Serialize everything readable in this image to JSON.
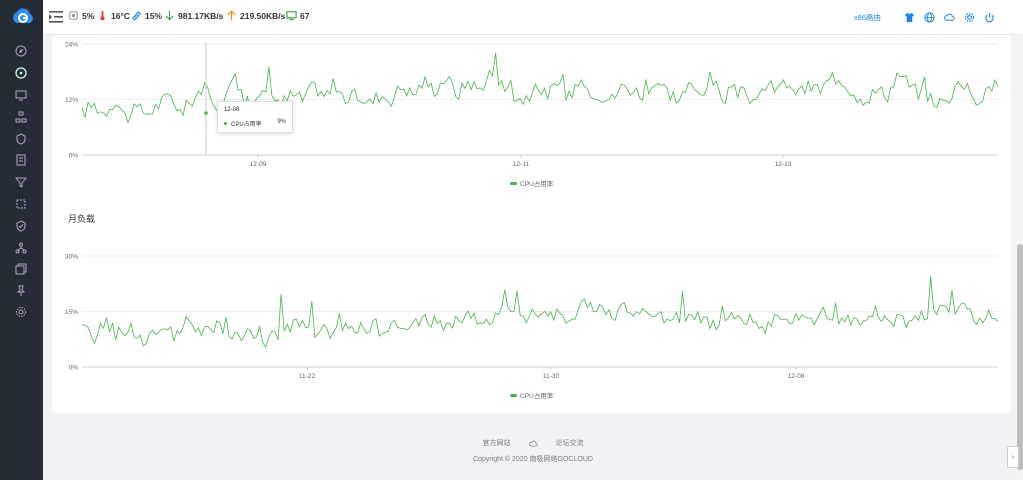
{
  "topbar": {
    "cpu_label": "5%",
    "temp_label": "16°C",
    "mem_label": "15%",
    "down_label": "981.17KB/s",
    "up_label": "219.50KB/s",
    "devices_label": "67",
    "router_link": "x86路由"
  },
  "sidebar": {
    "icons": [
      "dashboard-icon",
      "speedometer-icon",
      "monitor-icon",
      "network-icon",
      "shield-icon",
      "list-icon",
      "filter-icon",
      "crop-icon",
      "security-icon",
      "topology-icon",
      "copy-icon",
      "pin-icon",
      "settings-icon"
    ]
  },
  "charts": [
    {
      "id": "week",
      "legend": "CPU占用率",
      "tooltip": {
        "date": "12-08",
        "series": "CPU占用率",
        "value": "9%"
      }
    },
    {
      "id": "month",
      "title": "月负载",
      "legend": "CPU占用率"
    }
  ],
  "chart_data": [
    {
      "type": "line",
      "series": [
        {
          "name": "CPU占用率",
          "values": []
        }
      ],
      "x_ticks": [
        "12-09",
        "12-11",
        "12-13"
      ],
      "y_ticks": [
        "0%",
        "12%",
        "24%"
      ],
      "ylim": [
        0,
        24
      ],
      "grid": true,
      "legend_position": "bottom",
      "color": "#4caf50",
      "profile": [
        9,
        11,
        9,
        12,
        8,
        10,
        9,
        11,
        13,
        9,
        12,
        15,
        10,
        13,
        16,
        10,
        12,
        14,
        11,
        13,
        12,
        15,
        13,
        14,
        12,
        13,
        11,
        13,
        12,
        15,
        13,
        16,
        14,
        17,
        13,
        16,
        14,
        18,
        15,
        13,
        12,
        14,
        13,
        15,
        12,
        16,
        14,
        13,
        12,
        15,
        14,
        13,
        16,
        14,
        12,
        15,
        13,
        17,
        12,
        14,
        13,
        12,
        15,
        14,
        16,
        13,
        15,
        14,
        17,
        16,
        13,
        12,
        14,
        13,
        18,
        15,
        13,
        12,
        11,
        14,
        15,
        12,
        13,
        16
      ]
    },
    {
      "type": "line",
      "series": [
        {
          "name": "CPU占用率",
          "values": []
        }
      ],
      "x_ticks": [
        "11-22",
        "11-30",
        "12-08"
      ],
      "y_ticks": [
        "0%",
        "15%",
        "30%"
      ],
      "ylim": [
        0,
        30
      ],
      "grid": true,
      "legend_position": "bottom",
      "color": "#4caf50",
      "profile": [
        10,
        8,
        12,
        9,
        11,
        7,
        9,
        10,
        8,
        12,
        9,
        10,
        11,
        8,
        9,
        10,
        7,
        9,
        11,
        12,
        8,
        10,
        9,
        11,
        10,
        12,
        9,
        11,
        10,
        12,
        13,
        11,
        12,
        14,
        13,
        12,
        14,
        15,
        13,
        16,
        14,
        15,
        13,
        16,
        17,
        15,
        14,
        16,
        15,
        13,
        14,
        12,
        13,
        15,
        11,
        12,
        14,
        13,
        12,
        11,
        13,
        12,
        14,
        13,
        15,
        14,
        12,
        13,
        15,
        14,
        13,
        12,
        14,
        13,
        15,
        14,
        16,
        13,
        14,
        12
      ]
    }
  ],
  "footer": {
    "link_official": "官方网站",
    "link_forum": "论坛交流",
    "copyright": "Copyright © 2020 南极网络GOCLOUD"
  }
}
